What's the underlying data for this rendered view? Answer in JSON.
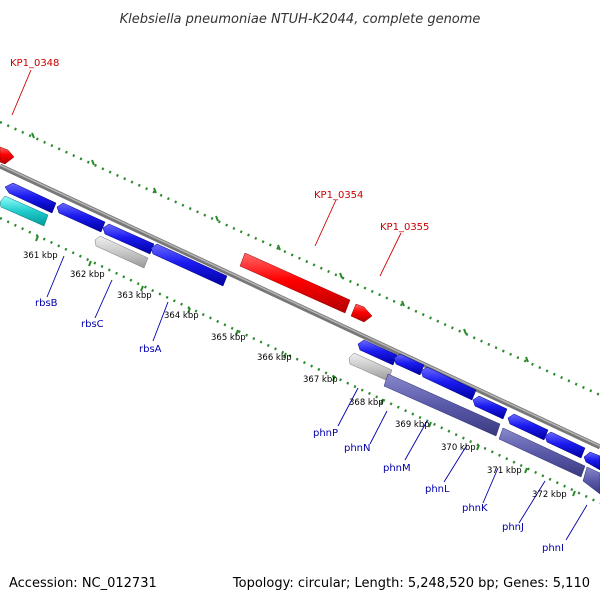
{
  "title": "Klebsiella pneumoniae NTUH-K2044, complete genome",
  "accession": "Accession: NC_012731",
  "topology": "Topology: circular; Length: 5,248,520 bp; Genes: 5,110",
  "colors": {
    "backbone": "#8a8a8a",
    "dots": "#2a8a2a",
    "forward_gene": "#e60000",
    "reverse_gene": "#1a1ae6",
    "rna": "#22cccc",
    "pseudo": "#c8c8c8",
    "operon": "#5a5aaa",
    "label_forward": "#cc0000",
    "label_reverse": "#0000aa"
  },
  "kbp_labels": [
    "361 kbp",
    "362 kbp",
    "363 kbp",
    "364 kbp",
    "365 kbp",
    "366 kbp",
    "367 kbp",
    "368 kbp",
    "369 kbp",
    "370 kbp",
    "371 kbp",
    "372 kbp"
  ],
  "forward_labels": [
    "KP1_0348",
    "KP1_0354",
    "KP1_0355"
  ],
  "reverse_labels": [
    "rbsB",
    "rbsC",
    "rbsA",
    "phnP",
    "phnN",
    "phnM",
    "phnL",
    "phnK",
    "phnJ",
    "phnI"
  ]
}
